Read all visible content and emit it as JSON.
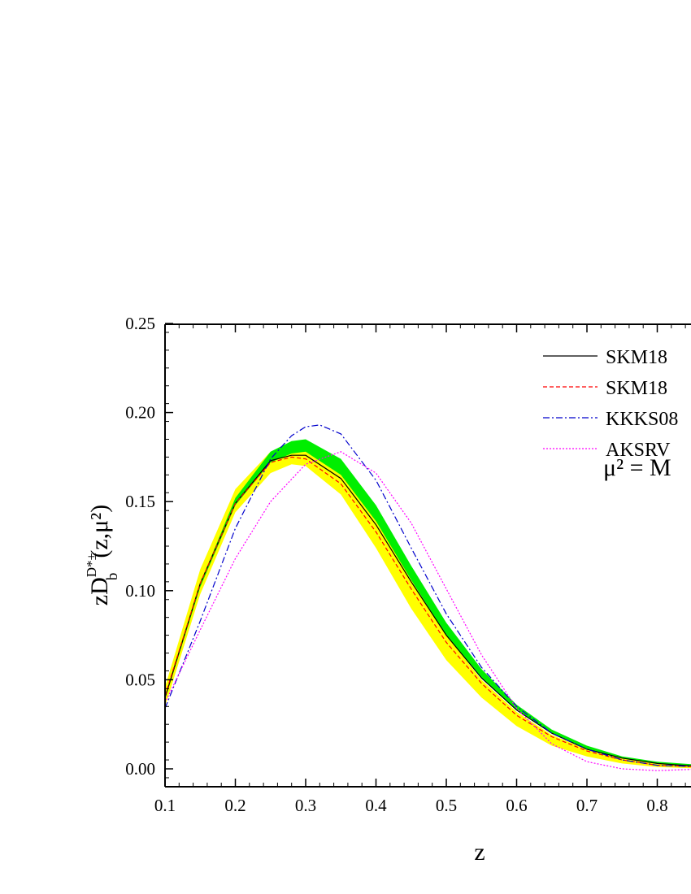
{
  "chart_data": {
    "type": "line",
    "xlabel": "z",
    "ylabel": {
      "main": "zD",
      "sub": "b",
      "sup": "D*±",
      "args": "(z,μ²)"
    },
    "xlim": [
      0.1,
      0.87
    ],
    "ylim": [
      -0.01,
      0.25
    ],
    "x_ticks": [
      "0.1",
      "0.2",
      "0.3",
      "0.4",
      "0.5",
      "0.6",
      "0.7",
      "0.8"
    ],
    "x_tick_values": [
      0.1,
      0.2,
      0.3,
      0.4,
      0.5,
      0.6,
      0.7,
      0.8
    ],
    "y_ticks": [
      "0.00",
      "0.05",
      "0.10",
      "0.15",
      "0.20",
      "0.25"
    ],
    "y_tick_values": [
      0.0,
      0.05,
      0.1,
      0.15,
      0.2,
      0.25
    ],
    "annotation": "μ² = M",
    "legend_position": "top-right",
    "bands": [
      {
        "color": "#ffff00",
        "x": [
          0.1,
          0.15,
          0.2,
          0.25,
          0.28,
          0.3,
          0.35,
          0.4,
          0.45,
          0.5,
          0.55,
          0.6,
          0.65,
          0.7,
          0.75,
          0.8,
          0.87
        ],
        "upper": [
          0.046,
          0.112,
          0.157,
          0.178,
          0.183,
          0.182,
          0.168,
          0.14,
          0.106,
          0.075,
          0.05,
          0.032,
          0.019,
          0.011,
          0.006,
          0.003,
          0.001
        ],
        "lower": [
          0.035,
          0.098,
          0.144,
          0.166,
          0.171,
          0.17,
          0.154,
          0.124,
          0.09,
          0.061,
          0.04,
          0.024,
          0.013,
          0.007,
          0.003,
          0.001,
          0.0
        ]
      },
      {
        "color": "#00ee00",
        "x": [
          0.1,
          0.15,
          0.2,
          0.25,
          0.28,
          0.3,
          0.35,
          0.4,
          0.45,
          0.5,
          0.55,
          0.6,
          0.65,
          0.7,
          0.75,
          0.8,
          0.87
        ],
        "upper": [
          0.04,
          0.104,
          0.152,
          0.178,
          0.184,
          0.185,
          0.174,
          0.148,
          0.114,
          0.082,
          0.056,
          0.036,
          0.022,
          0.013,
          0.007,
          0.004,
          0.002
        ],
        "lower": [
          0.039,
          0.102,
          0.148,
          0.172,
          0.177,
          0.178,
          0.165,
          0.139,
          0.106,
          0.075,
          0.051,
          0.033,
          0.02,
          0.011,
          0.006,
          0.003,
          0.001
        ]
      }
    ],
    "series": [
      {
        "name": "SKM18",
        "color": "#000000",
        "dash": "",
        "x": [
          0.1,
          0.15,
          0.2,
          0.25,
          0.28,
          0.3,
          0.35,
          0.4,
          0.45,
          0.5,
          0.55,
          0.6,
          0.65,
          0.7,
          0.75,
          0.8,
          0.87
        ],
        "y": [
          0.04,
          0.104,
          0.149,
          0.173,
          0.176,
          0.176,
          0.163,
          0.137,
          0.105,
          0.075,
          0.051,
          0.033,
          0.02,
          0.011,
          0.006,
          0.003,
          0.001
        ]
      },
      {
        "name": "SKM18",
        "color": "#ff0000",
        "dash": "5,3",
        "x": [
          0.1,
          0.15,
          0.2,
          0.25,
          0.28,
          0.3,
          0.35,
          0.4,
          0.45,
          0.5,
          0.55,
          0.6,
          0.65,
          0.7,
          0.75,
          0.8,
          0.87
        ],
        "y": [
          0.041,
          0.104,
          0.149,
          0.172,
          0.175,
          0.174,
          0.16,
          0.133,
          0.101,
          0.071,
          0.048,
          0.03,
          0.018,
          0.01,
          0.005,
          0.002,
          0.001
        ]
      },
      {
        "name": "KKKS08",
        "color": "#0000cc",
        "dash": "8,3,2,3",
        "x": [
          0.1,
          0.15,
          0.2,
          0.25,
          0.28,
          0.3,
          0.32,
          0.35,
          0.4,
          0.45,
          0.5,
          0.55,
          0.6,
          0.65,
          0.7,
          0.75,
          0.8,
          0.87
        ],
        "y": [
          0.034,
          0.083,
          0.135,
          0.174,
          0.187,
          0.192,
          0.193,
          0.188,
          0.162,
          0.124,
          0.087,
          0.057,
          0.035,
          0.02,
          0.011,
          0.005,
          0.002,
          0.001
        ]
      },
      {
        "name": "AKSRV",
        "color": "#ff00ff",
        "dash": "2,2",
        "x": [
          0.1,
          0.15,
          0.2,
          0.25,
          0.3,
          0.35,
          0.4,
          0.45,
          0.5,
          0.55,
          0.6,
          0.65,
          0.7,
          0.75,
          0.8,
          0.87
        ],
        "y": [
          0.037,
          0.078,
          0.118,
          0.15,
          0.171,
          0.178,
          0.166,
          0.138,
          0.101,
          0.064,
          0.034,
          0.014,
          0.004,
          0.0,
          -0.001,
          0.0
        ]
      }
    ]
  }
}
